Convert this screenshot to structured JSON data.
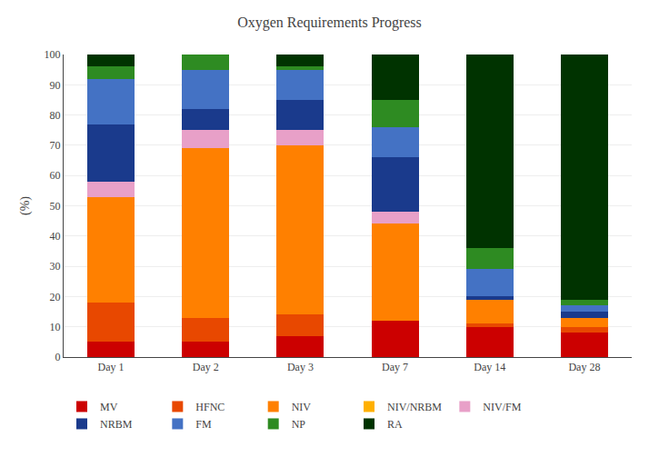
{
  "chart_data": {
    "type": "bar",
    "stacked": true,
    "title": "Oxygen Requirements Progress",
    "ylabel": "(%)",
    "categories": [
      "Day 1",
      "Day 2",
      "Day 3",
      "Day 7",
      "Day 14",
      "Day 28"
    ],
    "series": [
      {
        "name": "MV",
        "color": "#cc0000",
        "values": [
          5,
          5,
          7,
          12,
          10,
          8
        ]
      },
      {
        "name": "HFNC",
        "color": "#e84800",
        "values": [
          13,
          8,
          7,
          0,
          1,
          2
        ]
      },
      {
        "name": "NIV",
        "color": "#ff8000",
        "values": [
          35,
          56,
          56,
          32,
          8,
          3
        ]
      },
      {
        "name": "NIV/NRBM",
        "color": "#ffb000",
        "values": [
          0,
          0,
          0,
          0,
          0,
          0
        ]
      },
      {
        "name": "NIV/FM",
        "color": "#e8a0c8",
        "values": [
          5,
          6,
          5,
          4,
          0,
          0
        ]
      },
      {
        "name": "NRBM",
        "color": "#1a3a8c",
        "values": [
          19,
          7,
          10,
          18,
          1,
          2
        ]
      },
      {
        "name": "FM",
        "color": "#4472c4",
        "values": [
          15,
          13,
          10,
          10,
          9,
          2
        ]
      },
      {
        "name": "NP",
        "color": "#2e8b22",
        "values": [
          4,
          5,
          1,
          9,
          7,
          2
        ]
      },
      {
        "name": "RA",
        "color": "#003300",
        "values": [
          4,
          0,
          4,
          15,
          64,
          81
        ]
      }
    ],
    "ylim": [
      0,
      100
    ],
    "yticks": [
      0,
      10,
      20,
      30,
      40,
      50,
      60,
      70,
      80,
      90,
      100
    ],
    "grid": true,
    "legend": "bottom"
  }
}
